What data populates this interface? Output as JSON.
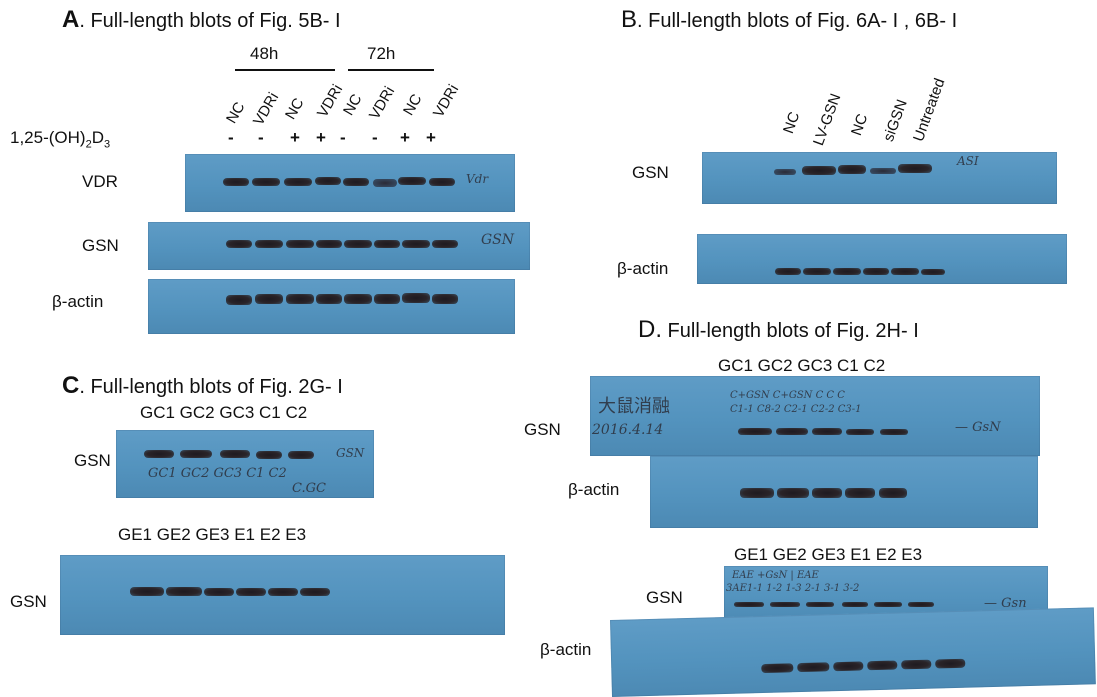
{
  "panelA": {
    "letter": "A",
    "title": ". Full-length blots of Fig. 5B- I",
    "group_48h": "48h",
    "group_72h": "72h",
    "lanes": [
      "NC",
      "VDRi",
      "NC",
      "VDRi",
      "NC",
      "VDRi",
      "NC",
      "VDRi"
    ],
    "treatment_label_main": "1,25-(OH)",
    "treatment_sub1": "2",
    "treatment_mid": "D",
    "treatment_sub2": "3",
    "signs": [
      "-",
      "-",
      "+",
      "+",
      "-",
      "-",
      "+",
      "+"
    ],
    "rows": [
      "VDR",
      "GSN",
      "β-actin"
    ],
    "hand_vdr": "Vdr",
    "hand_gsn": "GSN"
  },
  "panelB": {
    "letter": "B",
    "title": ". Full-length blots of Fig. 6A- I , 6B- I",
    "lanes": [
      "NC",
      "LV-GSN",
      "NC",
      "siGSN",
      "Untreated"
    ],
    "rows": [
      "GSN",
      "β-actin"
    ],
    "hand_top": "ASI"
  },
  "panelC": {
    "letter": "C",
    "title": ". Full-length blots of Fig. 2G- I",
    "header1": "GC1 GC2 GC3 C1 C2",
    "header2": "GE1 GE2 GE3 E1 E2 E3",
    "row1": "GSN",
    "row2": "GSN",
    "hand_lanes": "GC1  GC2  GC3  C1  C2",
    "hand_sub": "C.GC",
    "hand_gsn": "GSN"
  },
  "panelD": {
    "letter": "D.",
    "title": " Full-length blots of Fig. 2H- I",
    "header1": "GC1 GC2 GC3 C1 C2",
    "header2": "GE1 GE2 GE3 E1 E2 E3",
    "rows": [
      "GSN",
      "β-actin",
      "GSN",
      "β-actin"
    ],
    "hand_top_lanes": "C+GSN C+GSN  C     C     C",
    "hand_top_sub": "C1-1  C8-2  C2-1  C2-2  C3-1",
    "hand_date": "2016.4.14",
    "hand_chars": "大鼠消融",
    "hand_gsn": "— GsN",
    "hand_bot_lanes": "EAE  +GsN    |    EAE",
    "hand_bot_sub": "3AE1-1  1-2   1-3   2-1  3-1   3-2",
    "hand_gsn2": "— Gsn"
  }
}
